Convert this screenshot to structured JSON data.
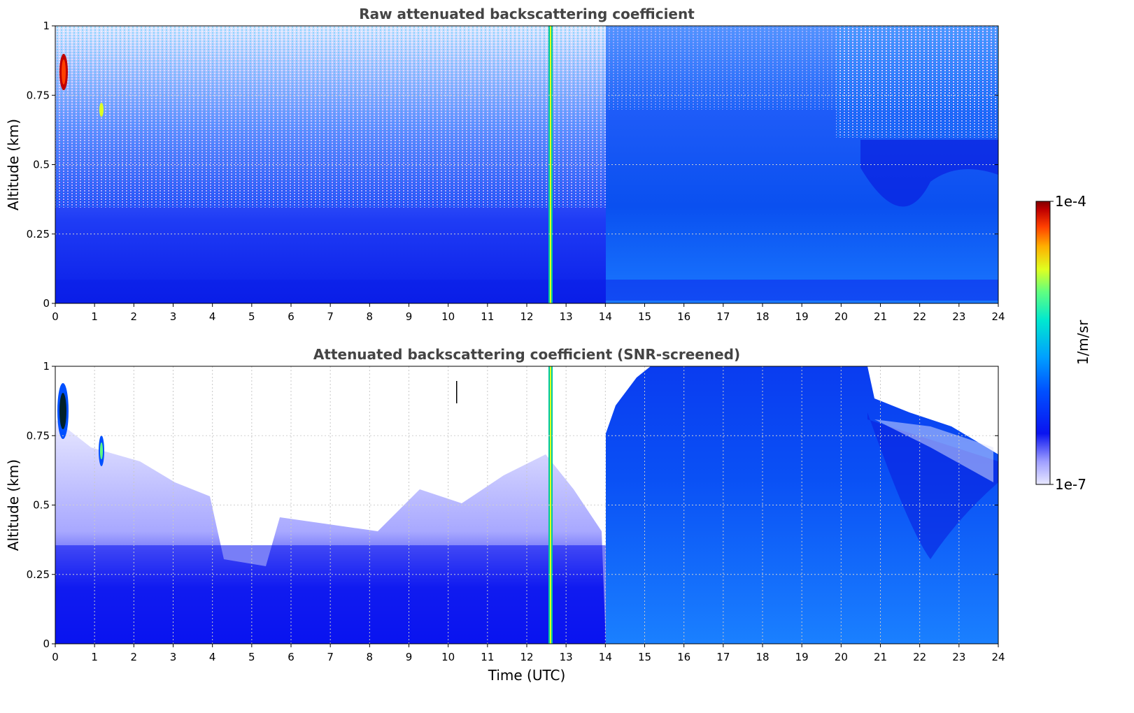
{
  "chart_data": [
    {
      "type": "heatmap",
      "title": "Raw attenuated backscattering coefficient",
      "ylabel": "Altitude (km)",
      "xlim": [
        0,
        24
      ],
      "ylim": [
        0,
        1
      ],
      "x_ticks": [
        "0",
        "1",
        "2",
        "3",
        "4",
        "5",
        "6",
        "7",
        "8",
        "9",
        "10",
        "11",
        "12",
        "13",
        "14",
        "15",
        "16",
        "17",
        "18",
        "19",
        "20",
        "21",
        "22",
        "23",
        "24"
      ],
      "y_ticks": [
        "0",
        "0.25",
        "0.5",
        "0.75",
        "1"
      ],
      "grid": true,
      "features": [
        {
          "time_utc": [
            0.1,
            0.3
          ],
          "altitude_km": [
            0.75,
            0.92
          ],
          "level": "high"
        },
        {
          "time_utc": [
            12.55,
            12.7
          ],
          "altitude_km": [
            0,
            1
          ],
          "level": "moderate"
        },
        {
          "time_utc": [
            14,
            24
          ],
          "altitude_km": [
            0,
            0.6
          ],
          "level": "elevated aerosol"
        }
      ]
    },
    {
      "type": "heatmap",
      "title": "Attenuated backscattering coefficient (SNR-screened)",
      "ylabel": "Altitude (km)",
      "xlabel": "Time (UTC)",
      "xlim": [
        0,
        24
      ],
      "ylim": [
        0,
        1
      ],
      "x_ticks": [
        "0",
        "1",
        "2",
        "3",
        "4",
        "5",
        "6",
        "7",
        "8",
        "9",
        "10",
        "11",
        "12",
        "13",
        "14",
        "15",
        "16",
        "17",
        "18",
        "19",
        "20",
        "21",
        "22",
        "23",
        "24"
      ],
      "y_ticks": [
        "0",
        "0.25",
        "0.5",
        "0.75",
        "1"
      ],
      "grid": true,
      "features": [
        {
          "time_utc": [
            0.1,
            0.35
          ],
          "altitude_km": [
            0.7,
            0.93
          ],
          "level": "high"
        },
        {
          "time_utc": [
            12.55,
            12.7
          ],
          "altitude_km": [
            0,
            1
          ],
          "level": "moderate"
        },
        {
          "time_utc": [
            14,
            20.8
          ],
          "altitude_km": [
            0,
            1
          ],
          "level": "elevated aerosol"
        }
      ]
    }
  ],
  "colorbar": {
    "label": "1/m/sr",
    "max_label": "1e-4",
    "min_label": "1e-7",
    "scale": "log",
    "colors": [
      "#e8e8ff",
      "#9090ff",
      "#0a14f0",
      "#0050ff",
      "#00a0ff",
      "#00e8d0",
      "#60ff80",
      "#e0ff20",
      "#ffb000",
      "#ff4000",
      "#c00000",
      "#800000"
    ]
  }
}
